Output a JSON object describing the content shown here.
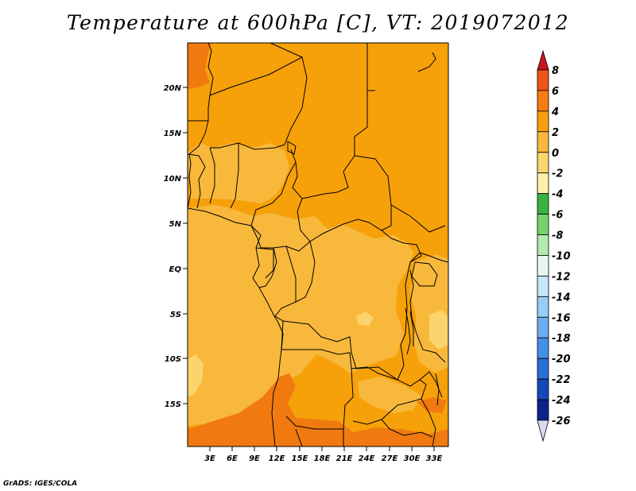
{
  "title": "Temperature at 600hPa [C], VT: 2019072012",
  "credit": "GrADS: IGES/COLA",
  "map": {
    "lat_labels": [
      "20N",
      "15N",
      "10N",
      "5N",
      "EQ",
      "5S",
      "10S",
      "15S"
    ],
    "lon_labels": [
      "3E",
      "6E",
      "9E",
      "12E",
      "15E",
      "18E",
      "21E",
      "24E",
      "27E",
      "30E",
      "33E"
    ],
    "colors": {
      "t_4_6": "#f07a10",
      "t_2_4": "#f6a10a",
      "t_0_2": "#f8b83c",
      "t_m2_0": "#fbd46e",
      "border": "#000000"
    }
  },
  "colorbar": {
    "levels": [
      "8",
      "6",
      "4",
      "2",
      "0",
      "-2",
      "-4",
      "-6",
      "-8",
      "-10",
      "-12",
      "-14",
      "-16",
      "-18",
      "-20",
      "-22",
      "-24",
      "-26"
    ],
    "colors": [
      "#e8271a",
      "#f05418",
      "#f67c14",
      "#f7a00e",
      "#f8b83c",
      "#fbd66e",
      "#fdf0a8",
      "#39b440",
      "#76d26c",
      "#b2eab0",
      "#e6f7f3",
      "#c6e6fa",
      "#98cdf7",
      "#6baef0",
      "#4490e6",
      "#2a6fd6",
      "#1548b8",
      "#0c2488",
      "#0b1058"
    ],
    "top_arrow_color": "#c8141e",
    "bottom_arrow_color": "#dcdaf2"
  }
}
